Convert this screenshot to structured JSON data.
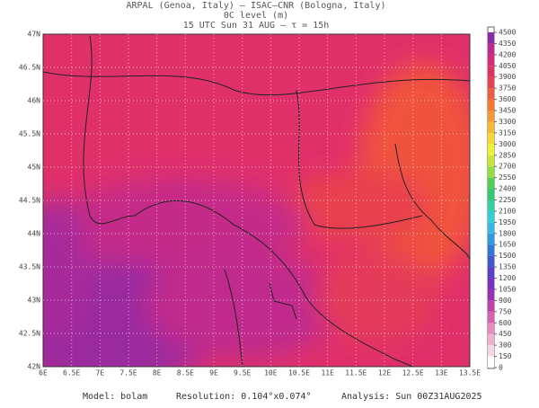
{
  "header": {
    "line1": "ARPAL (Genoa, Italy)  –  ISAC–CNR (Bologna, Italy)",
    "line2": "0C level (m)",
    "line3": "15 UTC Sun 31 AUG  –  τ = 15h"
  },
  "map": {
    "lon_labels": [
      "6E",
      "6.5E",
      "7E",
      "7.5E",
      "8E",
      "8.5E",
      "9E",
      "9.5E",
      "10E",
      "10.5E",
      "11E",
      "11.5E",
      "12E",
      "12.5E",
      "13E",
      "13.5E"
    ],
    "lat_labels": [
      "42N",
      "42.5N",
      "43N",
      "43.5N",
      "44N",
      "44.5N",
      "45N",
      "45.5N",
      "46N",
      "46.5N",
      "47N"
    ]
  },
  "colorbar": {
    "levels": [
      0,
      150,
      300,
      450,
      600,
      750,
      900,
      1050,
      1200,
      1350,
      1500,
      1650,
      1800,
      1950,
      2100,
      2250,
      2400,
      2550,
      2700,
      2850,
      3000,
      3150,
      3300,
      3450,
      3600,
      3750,
      3900,
      4050,
      4200,
      4350,
      4500
    ],
    "colors": [
      "#ffffff",
      "#f4d6e6",
      "#f0b0d0",
      "#e88ac0",
      "#d860b0",
      "#c040b0",
      "#9a30b8",
      "#7a30c0",
      "#5a40c8",
      "#4058d0",
      "#3078d8",
      "#3098e0",
      "#30b8e8",
      "#30d0d8",
      "#30d0a8",
      "#30c870",
      "#50d050",
      "#90e040",
      "#c8e838",
      "#f0f030",
      "#f8d830",
      "#f8b830",
      "#f89830",
      "#f87830",
      "#f05a40",
      "#e84050",
      "#e03060",
      "#d82878",
      "#c02890",
      "#8a2aa8"
    ]
  },
  "footer": {
    "model": "Model: bolam",
    "resolution": "Resolution: 0.104°x0.074°",
    "analysis": "Analysis: Sun 00Z31AUG2025"
  }
}
